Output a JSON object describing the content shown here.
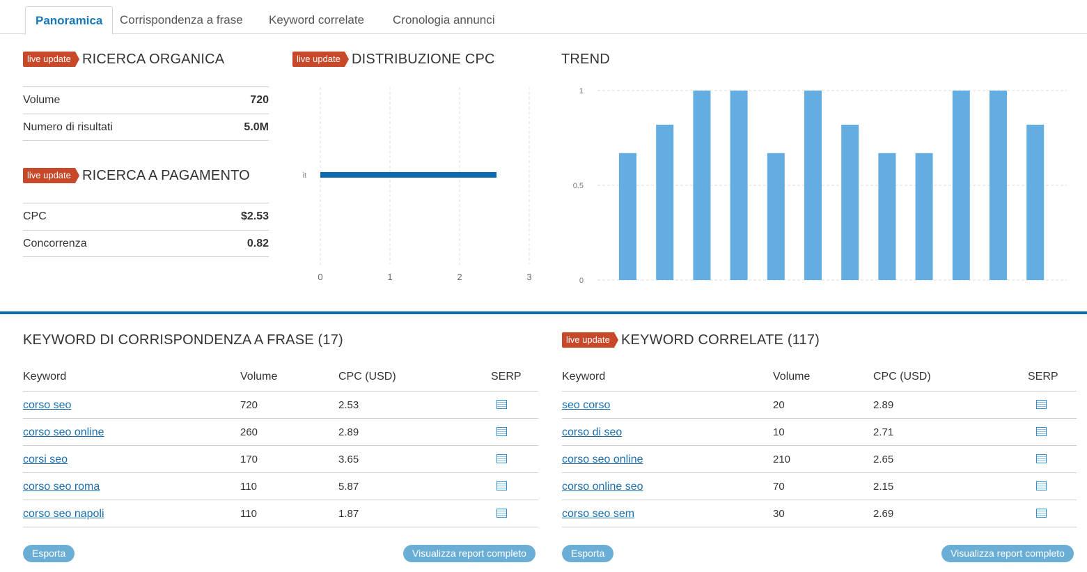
{
  "tabs": [
    "Panoramica",
    "Corrispondenza a frase",
    "Keyword correlate",
    "Cronologia annunci"
  ],
  "badge_label": "live update",
  "organic": {
    "title": "RICERCA ORGANICA",
    "rows": [
      {
        "label": "Volume",
        "value": "720"
      },
      {
        "label": "Numero di risultati",
        "value": "5.0M"
      }
    ]
  },
  "paid": {
    "title": "RICERCA A PAGAMENTO",
    "rows": [
      {
        "label": "CPC",
        "value": "$2.53"
      },
      {
        "label": "Concorrenza",
        "value": "0.82"
      }
    ]
  },
  "cpc_distribution": {
    "title": "DISTRIBUZIONE CPC"
  },
  "trend": {
    "title": "TREND"
  },
  "chart_data": [
    {
      "type": "bar",
      "title": "DISTRIBUZIONE CPC",
      "orientation": "horizontal",
      "categories": [
        "it"
      ],
      "values": [
        2.53
      ],
      "xlim": [
        0,
        3
      ],
      "xticks": [
        "0",
        "1",
        "2",
        "3"
      ],
      "color": "#0a6aae",
      "grid": true
    },
    {
      "type": "bar",
      "title": "TREND",
      "categories": [
        "1",
        "2",
        "3",
        "4",
        "5",
        "6",
        "7",
        "8",
        "9",
        "10",
        "11",
        "12"
      ],
      "values": [
        0.67,
        0.82,
        1,
        1,
        0.67,
        1,
        0.82,
        0.67,
        0.67,
        1,
        1,
        0.82
      ],
      "ylim": [
        0,
        1
      ],
      "yticks": [
        "0",
        "0.5",
        "1"
      ],
      "color": "#63ade0",
      "grid": true
    }
  ],
  "phrase_match": {
    "title": "KEYWORD DI CORRISPONDENZA A FRASE (17)",
    "headers": [
      "Keyword",
      "Volume",
      "CPC (USD)",
      "SERP"
    ],
    "rows": [
      {
        "keyword": "corso seo",
        "volume": "720",
        "cpc": "2.53"
      },
      {
        "keyword": "corso seo online",
        "volume": "260",
        "cpc": "2.89"
      },
      {
        "keyword": "corsi seo",
        "volume": "170",
        "cpc": "3.65"
      },
      {
        "keyword": "corso seo roma",
        "volume": "110",
        "cpc": "5.87"
      },
      {
        "keyword": "corso seo napoli",
        "volume": "110",
        "cpc": "1.87"
      }
    ],
    "export_label": "Esporta",
    "report_label": "Visualizza report completo"
  },
  "related": {
    "title": "KEYWORD CORRELATE (117)",
    "headers": [
      "Keyword",
      "Volume",
      "CPC (USD)",
      "SERP"
    ],
    "rows": [
      {
        "keyword": "seo corso",
        "volume": "20",
        "cpc": "2.89"
      },
      {
        "keyword": "corso di seo",
        "volume": "10",
        "cpc": "2.71"
      },
      {
        "keyword": "corso seo online",
        "volume": "210",
        "cpc": "2.65"
      },
      {
        "keyword": "corso online seo",
        "volume": "70",
        "cpc": "2.15"
      },
      {
        "keyword": "corso seo sem",
        "volume": "30",
        "cpc": "2.69"
      }
    ],
    "export_label": "Esporta",
    "report_label": "Visualizza report completo"
  },
  "icons": {
    "serp": "serp-list-icon"
  }
}
